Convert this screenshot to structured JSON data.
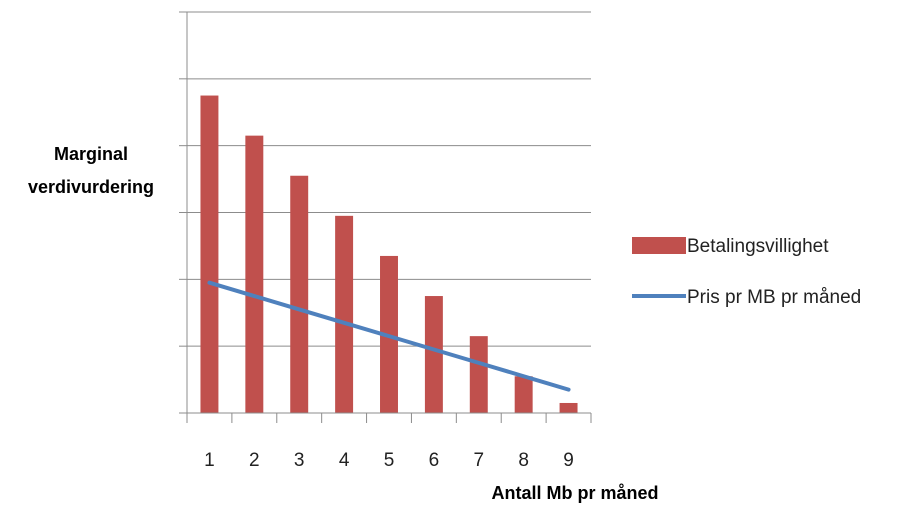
{
  "chart_data": {
    "type": "bar",
    "title": "",
    "xlabel": "Antall Mb pr måned",
    "ylabel_lines": [
      "Marginal",
      "verdivurdering"
    ],
    "categories": [
      "1",
      "2",
      "3",
      "4",
      "5",
      "6",
      "7",
      "8",
      "9"
    ],
    "series": [
      {
        "name": "Betalingsvillighet",
        "type": "bar",
        "color": "#c0504d",
        "values": [
          4.75,
          4.15,
          3.55,
          2.95,
          2.35,
          1.75,
          1.15,
          0.55,
          0.15
        ]
      },
      {
        "name": "Pris pr MB pr måned",
        "type": "line",
        "color": "#4f81bd",
        "values": [
          1.95,
          1.75,
          1.55,
          1.35,
          1.15,
          0.95,
          0.75,
          0.55,
          0.35
        ]
      }
    ],
    "ylim": [
      0,
      6
    ],
    "y_gridlines": [
      1,
      2,
      3,
      4,
      5,
      6
    ],
    "y_tick_labels_shown": false,
    "grid": true,
    "legend_position": "right"
  }
}
